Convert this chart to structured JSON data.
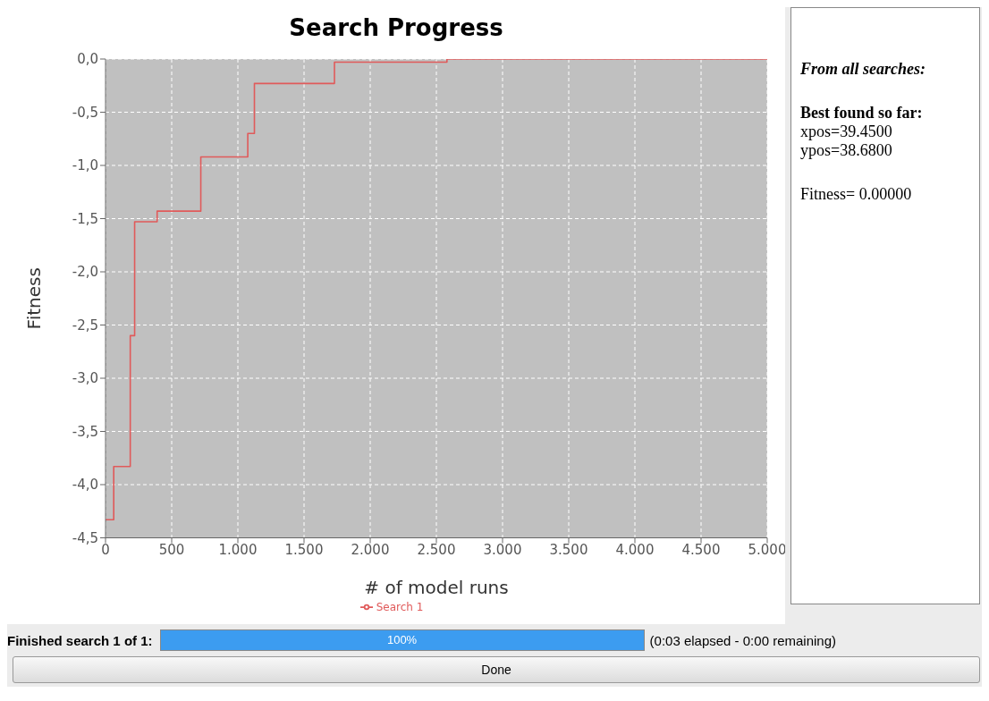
{
  "chart_data": {
    "type": "step",
    "title": "Search Progress",
    "xlabel": "# of model runs",
    "ylabel": "Fitness",
    "x": [
      0,
      62,
      187,
      220,
      390,
      720,
      1075,
      1125,
      1730,
      2580,
      5000
    ],
    "series": [
      {
        "name": "Search 1",
        "color": "#e05a5a",
        "values": [
          -4.33,
          -3.83,
          -2.6,
          -1.53,
          -1.43,
          -0.92,
          -0.7,
          -0.23,
          -0.03,
          0,
          0
        ]
      }
    ],
    "xlim": [
      0,
      5000
    ],
    "xticks": [
      0,
      500,
      {
        "value": 1000,
        "label": "1.000"
      },
      {
        "value": 1500,
        "label": "1.500"
      },
      {
        "value": 2000,
        "label": "2.000"
      },
      {
        "value": 2500,
        "label": "2.500"
      },
      {
        "value": 3000,
        "label": "3.000"
      },
      {
        "value": 3500,
        "label": "3.500"
      },
      {
        "value": 4000,
        "label": "4.000"
      },
      {
        "value": 4500,
        "label": "4.500"
      },
      {
        "value": 5000,
        "label": "5.000"
      }
    ],
    "ylim": [
      -4.5,
      0
    ],
    "yticks": [
      {
        "value": 0,
        "label": "0,0"
      },
      {
        "value": -0.5,
        "label": "-0,5"
      },
      {
        "value": -1,
        "label": "-1,0"
      },
      {
        "value": -1.5,
        "label": "-1,5"
      },
      {
        "value": -2,
        "label": "-2,0"
      },
      {
        "value": -2.5,
        "label": "-2,5"
      },
      {
        "value": -3,
        "label": "-3,0"
      },
      {
        "value": -3.5,
        "label": "-3,5"
      },
      {
        "value": -4,
        "label": "-4,0"
      },
      {
        "value": -4.5,
        "label": "-4,5"
      }
    ],
    "grid": true,
    "legend": "bottom",
    "marker": "none",
    "line_style": "solid",
    "annotations": [
      "From all searches:",
      "Best found so far:",
      "xpos=39.4500",
      "ypos=38.6800",
      "Fitness= 0.00000",
      "Finished search 1 of 1:",
      "100%",
      "(0:03 elapsed - 0:00 remaining)",
      "Done"
    ]
  }
}
